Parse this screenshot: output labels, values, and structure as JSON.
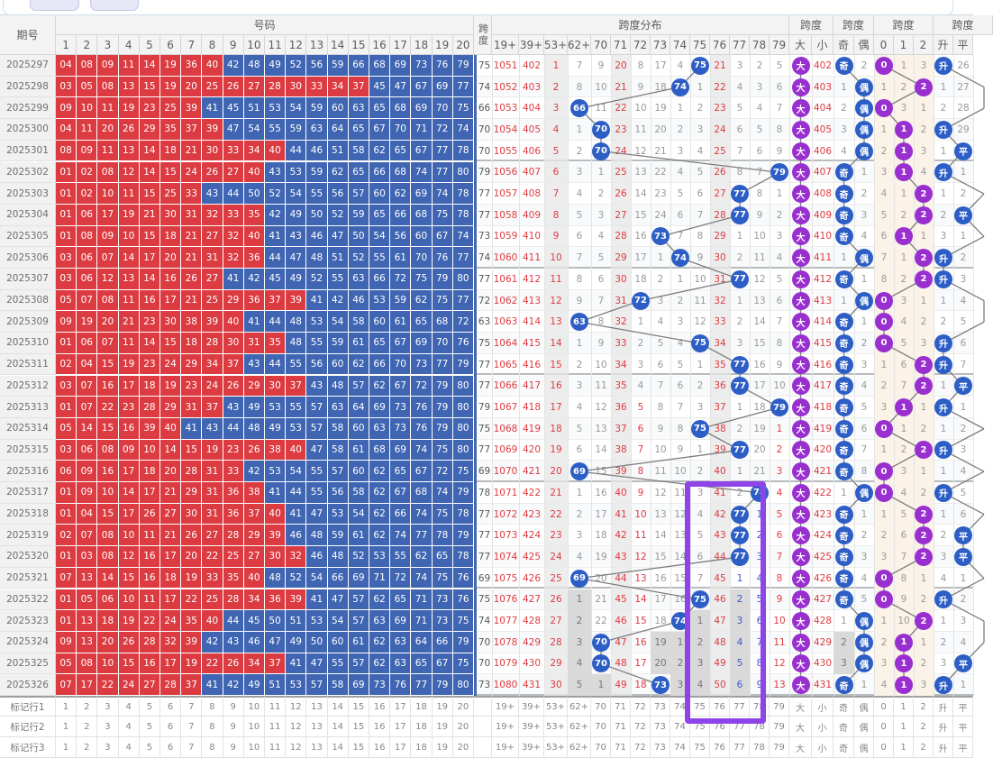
{
  "app": {
    "top_buttons": [
      {
        "label": ""
      },
      {
        "label": ""
      }
    ]
  },
  "colors": {
    "cell_red": "#dc3b41",
    "cell_blue": "#3f65b3",
    "ball_blue": "#2d5ec5",
    "ball_purple": "#9a2fd0",
    "text_red": "#e03b41",
    "text_blue": "#3f58c9",
    "text_gray": "#9a9a9a",
    "shaded_col": "#e7e7e7",
    "cream_col": "#fbf2e8",
    "gray_cell": "#d9d9d9",
    "highlight": "#8e44e8",
    "span_stripe": "#4668b0"
  },
  "headers": {
    "period": "期号",
    "numbers_group": "号码",
    "span": "跨度",
    "dist_group": "跨度分布",
    "size_group": "跨度",
    "parity_group": "跨度",
    "mod_group": "跨度",
    "trend_group": "跨度",
    "number_cols": [
      "1",
      "2",
      "3",
      "4",
      "5",
      "6",
      "7",
      "8",
      "9",
      "10",
      "11",
      "12",
      "13",
      "14",
      "15",
      "16",
      "17",
      "18",
      "19",
      "20"
    ],
    "right_cols": [
      "19+",
      "39+",
      "53+",
      "62+",
      "70",
      "71",
      "72",
      "73",
      "74",
      "75",
      "76",
      "77",
      "78",
      "79",
      "大",
      "小",
      "奇",
      "偶",
      "0",
      "1",
      "2",
      "升",
      "平"
    ],
    "shaded_cols": [
      "53+",
      "71",
      "76"
    ],
    "cream_cols": [
      "0",
      "1",
      "2"
    ]
  },
  "highlight_note": {
    "covers_columns": "75 76 77",
    "rows": "2025317 to marker row 1"
  },
  "footer": {
    "labels": [
      "标记行1",
      "标记行2",
      "标记行3"
    ]
  },
  "rows": [
    {
      "period": "2025297",
      "numbers": "04 08 09 11 14 19 36 40 42 48 49 52 56 59 66 68 69 73 76 79",
      "span": "75",
      "cells": [
        "r:1051",
        "r:402",
        "r:1",
        "7",
        "9",
        "r:20",
        "8",
        "17",
        "4",
        "B:75",
        "r:21",
        "3",
        "2",
        "5",
        "P:大",
        "r:402",
        "B:奇",
        "2",
        "P:0",
        "1",
        "3",
        "B:升",
        "26"
      ]
    },
    {
      "period": "2025298",
      "numbers": "03 05 08 13 15 19 20 25 26 27 28 30 33 34 37 45 47 67 69 77",
      "span": "74",
      "cells": [
        "r:1052",
        "r:403",
        "r:2",
        "8",
        "10",
        "r:21",
        "9",
        "18",
        "B:74",
        "1",
        "r:22",
        "4",
        "3",
        "6",
        "P:大",
        "r:403",
        "1",
        "B:偶",
        "1",
        "2",
        "P:2",
        "1",
        "27"
      ]
    },
    {
      "period": "2025299",
      "numbers": "09 10 11 19 23 25 39 41 45 51 53 54 59 60 63 65 68 69 70 75",
      "span": "66",
      "cells": [
        "r:1053",
        "r:404",
        "r:3",
        "B:66",
        "11",
        "r:22",
        "10",
        "19",
        "1",
        "2",
        "r:23",
        "5",
        "4",
        "7",
        "P:大",
        "r:404",
        "2",
        "B:偶",
        "P:0",
        "3",
        "1",
        "2",
        "28"
      ]
    },
    {
      "period": "2025300",
      "numbers": "04 11 20 26 29 35 37 39 47 54 55 59 63 64 65 67 70 71 72 74",
      "span": "70",
      "cells": [
        "r:1054",
        "r:405",
        "r:4",
        "1",
        "B:70",
        "r:23",
        "11",
        "20",
        "2",
        "3",
        "r:24",
        "6",
        "5",
        "8",
        "P:大",
        "r:405",
        "3",
        "B:偶",
        "1",
        "P:1",
        "2",
        "B:升",
        "29"
      ]
    },
    {
      "period": "2025301",
      "numbers": "08 09 11 13 14 18 21 30 33 34 40 44 46 51 58 62 65 67 77 78",
      "span": "70",
      "cells": [
        "r:1055",
        "r:406",
        "r:5",
        "2",
        "B:70",
        "r:24",
        "12",
        "21",
        "3",
        "4",
        "r:25",
        "7",
        "6",
        "9",
        "P:大",
        "r:406",
        "4",
        "B:偶",
        "2",
        "P:1",
        "3",
        "1",
        "B:平"
      ]
    },
    {
      "period": "2025302",
      "numbers": "01 02 08 12 14 15 24 26 27 40 43 53 59 62 65 66 68 74 77 80",
      "span": "79",
      "cells": [
        "r:1056",
        "r:407",
        "r:6",
        "3",
        "1",
        "r:25",
        "13",
        "22",
        "4",
        "5",
        "r:26",
        "8",
        "7",
        "B:79",
        "P:大",
        "r:407",
        "B:奇",
        "1",
        "3",
        "P:1",
        "4",
        "B:升",
        "1"
      ]
    },
    {
      "period": "2025303",
      "numbers": "01 02 10 11 15 25 33 43 44 50 52 54 55 56 57 60 62 69 74 78",
      "span": "77",
      "cells": [
        "r:1057",
        "r:408",
        "r:7",
        "4",
        "2",
        "r:26",
        "14",
        "23",
        "5",
        "6",
        "r:27",
        "B:77",
        "8",
        "1",
        "P:大",
        "r:408",
        "B:奇",
        "2",
        "4",
        "1",
        "P:2",
        "1",
        "2"
      ]
    },
    {
      "period": "2025304",
      "numbers": "01 06 17 19 21 30 31 32 33 35 42 49 50 52 59 65 66 68 75 78",
      "span": "77",
      "cells": [
        "r:1058",
        "r:409",
        "r:8",
        "5",
        "3",
        "r:27",
        "15",
        "24",
        "6",
        "7",
        "r:28",
        "B:77",
        "9",
        "2",
        "P:大",
        "r:409",
        "B:奇",
        "3",
        "5",
        "2",
        "P:2",
        "2",
        "B:平"
      ]
    },
    {
      "period": "2025305",
      "numbers": "01 08 09 10 15 18 21 27 32 40 41 43 46 47 50 54 56 60 67 74",
      "span": "73",
      "cells": [
        "r:1059",
        "r:410",
        "r:9",
        "6",
        "4",
        "r:28",
        "16",
        "B:73",
        "7",
        "8",
        "r:29",
        "1",
        "10",
        "3",
        "P:大",
        "r:410",
        "B:奇",
        "4",
        "6",
        "P:1",
        "1",
        "3",
        "1"
      ]
    },
    {
      "period": "2025306",
      "numbers": "03 06 07 14 17 20 21 31 32 36 44 47 48 51 52 55 61 70 76 77",
      "span": "74",
      "cells": [
        "r:1060",
        "r:411",
        "r:10",
        "7",
        "5",
        "r:29",
        "17",
        "1",
        "B:74",
        "9",
        "r:30",
        "2",
        "11",
        "4",
        "P:大",
        "r:411",
        "1",
        "B:偶",
        "7",
        "1",
        "P:2",
        "B:升",
        "2"
      ]
    },
    {
      "period": "2025307",
      "numbers": "03 06 12 13 14 16 26 27 41 42 45 49 52 55 63 66 72 75 79 80",
      "span": "77",
      "cells": [
        "r:1061",
        "r:412",
        "r:11",
        "8",
        "6",
        "r:30",
        "18",
        "2",
        "1",
        "10",
        "r:31",
        "B:77",
        "12",
        "5",
        "P:大",
        "r:412",
        "B:奇",
        "1",
        "8",
        "2",
        "P:2",
        "B:升",
        "3"
      ]
    },
    {
      "period": "2025308",
      "numbers": "05 07 08 11 16 17 21 25 29 36 37 39 41 42 46 53 59 62 75 77",
      "span": "72",
      "cells": [
        "r:1062",
        "r:413",
        "r:12",
        "9",
        "7",
        "r:31",
        "B:72",
        "3",
        "2",
        "11",
        "r:32",
        "1",
        "13",
        "6",
        "P:大",
        "r:413",
        "1",
        "B:偶",
        "P:0",
        "3",
        "1",
        "1",
        "4"
      ]
    },
    {
      "period": "2025309",
      "numbers": "09 19 20 21 23 30 38 39 40 41 44 48 53 54 58 60 61 65 68 72",
      "span": "63",
      "cells": [
        "r:1063",
        "r:414",
        "r:13",
        "B:63",
        "8",
        "r:32",
        "1",
        "4",
        "3",
        "12",
        "r:33",
        "2",
        "14",
        "7",
        "P:大",
        "r:414",
        "B:奇",
        "1",
        "P:0",
        "4",
        "2",
        "2",
        "5"
      ]
    },
    {
      "period": "2025310",
      "numbers": "01 06 07 11 14 15 18 28 30 31 35 48 55 59 61 65 67 69 70 76",
      "span": "75",
      "cells": [
        "r:1064",
        "r:415",
        "r:14",
        "1",
        "9",
        "r:33",
        "2",
        "5",
        "4",
        "B:75",
        "r:34",
        "3",
        "15",
        "8",
        "P:大",
        "r:415",
        "B:奇",
        "2",
        "P:0",
        "5",
        "3",
        "B:升",
        "6"
      ]
    },
    {
      "period": "2025311",
      "numbers": "02 04 15 19 23 24 29 34 37 43 44 55 56 60 62 66 70 73 77 79",
      "span": "77",
      "cells": [
        "r:1065",
        "r:416",
        "r:15",
        "2",
        "10",
        "r:34",
        "3",
        "6",
        "5",
        "1",
        "r:35",
        "B:77",
        "16",
        "9",
        "P:大",
        "r:416",
        "B:奇",
        "3",
        "1",
        "6",
        "P:2",
        "B:升",
        "7"
      ]
    },
    {
      "period": "2025312",
      "numbers": "03 07 16 17 18 19 23 24 26 29 30 37 43 48 57 62 67 72 79 80",
      "span": "77",
      "cells": [
        "r:1066",
        "r:417",
        "r:16",
        "3",
        "11",
        "r:35",
        "4",
        "7",
        "6",
        "2",
        "r:36",
        "B:77",
        "17",
        "10",
        "P:大",
        "r:417",
        "B:奇",
        "4",
        "2",
        "7",
        "P:2",
        "1",
        "B:平"
      ]
    },
    {
      "period": "2025313",
      "numbers": "01 07 22 23 28 29 31 37 43 49 53 55 57 63 64 69 73 76 79 80",
      "span": "79",
      "cells": [
        "r:1067",
        "r:418",
        "r:17",
        "4",
        "12",
        "r:36",
        "r:5",
        "8",
        "7",
        "3",
        "r:37",
        "1",
        "18",
        "B:79",
        "P:大",
        "r:418",
        "B:奇",
        "5",
        "3",
        "P:1",
        "1",
        "B:升",
        "1"
      ]
    },
    {
      "period": "2025314",
      "numbers": "05 14 15 16 39 40 41 43 44 48 49 53 57 58 60 63 73 76 79 80",
      "span": "75",
      "cells": [
        "r:1068",
        "r:419",
        "r:18",
        "5",
        "13",
        "r:37",
        "r:6",
        "9",
        "8",
        "B:75",
        "r:38",
        "2",
        "19",
        "r:1",
        "P:大",
        "r:419",
        "B:奇",
        "6",
        "P:0",
        "1",
        "2",
        "1",
        "2"
      ]
    },
    {
      "period": "2025315",
      "numbers": "03 06 08 09 10 14 15 19 23 26 38 40 47 58 61 68 69 74 75 80",
      "span": "77",
      "cells": [
        "r:1069",
        "r:420",
        "r:19",
        "6",
        "14",
        "r:38",
        "r:7",
        "10",
        "9",
        "1",
        "r:39",
        "B:77",
        "20",
        "r:2",
        "P:大",
        "r:420",
        "B:奇",
        "7",
        "1",
        "2",
        "P:2",
        "B:升",
        "3"
      ]
    },
    {
      "period": "2025316",
      "numbers": "06 09 16 17 18 20 28 31 33 42 53 54 55 57 60 62 65 67 72 75",
      "span": "69",
      "cells": [
        "r:1070",
        "r:421",
        "r:20",
        "B:69",
        "15",
        "r:39",
        "r:8",
        "11",
        "10",
        "2",
        "r:40",
        "1",
        "21",
        "r:3",
        "P:大",
        "r:421",
        "B:奇",
        "8",
        "P:0",
        "3",
        "1",
        "1",
        "4"
      ]
    },
    {
      "period": "2025317",
      "numbers": "01 09 10 14 17 21 29 31 36 38 41 44 55 56 58 62 67 68 74 79",
      "span": "78",
      "cells": [
        "r:1071",
        "r:422",
        "r:21",
        "1",
        "16",
        "r:40",
        "r:9",
        "12",
        "11",
        "3",
        "r:41",
        "2",
        "B:78",
        "r:4",
        "P:大",
        "r:422",
        "1",
        "B:偶",
        "P:0",
        "4",
        "2",
        "B:升",
        "5"
      ]
    },
    {
      "period": "2025318",
      "numbers": "01 04 15 17 26 27 30 31 36 37 40 41 47 53 54 62 66 74 75 78",
      "span": "77",
      "cells": [
        "r:1072",
        "r:423",
        "r:22",
        "2",
        "17",
        "r:41",
        "r:10",
        "13",
        "12",
        "4",
        "r:42",
        "B:77",
        "b:1",
        "r:5",
        "P:大",
        "r:423",
        "B:奇",
        "1",
        "1",
        "5",
        "P:2",
        "1",
        "6"
      ]
    },
    {
      "period": "2025319",
      "numbers": "02 07 08 10 11 21 26 27 28 29 39 46 48 59 61 62 74 77 78 79",
      "span": "77",
      "cells": [
        "r:1073",
        "r:424",
        "r:23",
        "3",
        "18",
        "r:42",
        "r:11",
        "14",
        "13",
        "5",
        "r:43",
        "B:77",
        "b:2",
        "r:6",
        "P:大",
        "r:424",
        "B:奇",
        "2",
        "2",
        "6",
        "P:2",
        "2",
        "B:平"
      ]
    },
    {
      "period": "2025320",
      "numbers": "01 03 08 12 16 17 20 22 25 27 30 32 46 48 52 53 55 62 65 78",
      "span": "77",
      "cells": [
        "r:1074",
        "r:425",
        "r:24",
        "4",
        "19",
        "r:43",
        "r:12",
        "15",
        "14",
        "6",
        "r:44",
        "B:77",
        "b:3",
        "r:7",
        "P:大",
        "r:425",
        "B:奇",
        "3",
        "3",
        "7",
        "P:2",
        "3",
        "B:平"
      ]
    },
    {
      "period": "2025321",
      "numbers": "07 13 14 15 16 18 19 33 35 40 48 52 54 66 69 71 72 74 75 76",
      "span": "69",
      "cells": [
        "r:1075",
        "r:426",
        "r:25",
        "B:69",
        "20",
        "r:44",
        "r:13",
        "16",
        "15",
        "7",
        "r:45",
        "b:1",
        "b:4",
        "r:8",
        "P:大",
        "r:426",
        "B:奇",
        "4",
        "P:0",
        "8",
        "1",
        "4",
        "1"
      ]
    },
    {
      "period": "2025322",
      "numbers": "01 05 06 10 11 17 22 25 28 34 36 39 41 47 57 62 65 71 73 76",
      "span": "75",
      "cells": [
        "r:1076",
        "r:427",
        "r:26",
        "g:1",
        "21",
        "r:45",
        "r:14",
        "17",
        "16",
        "B:75",
        "r:46",
        "gb:2",
        "b:5",
        "r:9",
        "P:大",
        "r:427",
        "B:奇",
        "5",
        "P:0",
        "9",
        "2",
        "B:升",
        "2"
      ]
    },
    {
      "period": "2025323",
      "numbers": "01 13 18 19 22 24 35 40 44 45 50 51 53 54 57 63 69 71 73 75",
      "span": "74",
      "cells": [
        "r:1077",
        "r:428",
        "r:27",
        "g:2",
        "22",
        "r:46",
        "r:15",
        "18",
        "B:74",
        "g:1",
        "r:47",
        "gb:3",
        "b:6",
        "r:10",
        "P:大",
        "r:428",
        "1",
        "B:偶",
        "1",
        "10",
        "P:2",
        "1",
        "3"
      ]
    },
    {
      "period": "2025324",
      "numbers": "09 13 20 26 28 32 39 42 43 46 47 49 50 60 61 62 63 64 66 79",
      "span": "70",
      "cells": [
        "r:1078",
        "r:429",
        "r:28",
        "g:3",
        "B:70",
        "r:47",
        "r:16",
        "g:19",
        "g:1",
        "g:2",
        "r:48",
        "gb:4",
        "b:7",
        "r:11",
        "P:大",
        "r:429",
        "g:2",
        "B:偶",
        "2",
        "P:1",
        "1",
        "2",
        "4"
      ]
    },
    {
      "period": "2025325",
      "numbers": "05 08 10 15 16 17 19 22 26 34 37 41 47 55 57 62 63 65 67 75",
      "span": "70",
      "cells": [
        "r:1079",
        "r:430",
        "r:29",
        "g:4",
        "B:70",
        "r:48",
        "r:17",
        "g:20",
        "g:2",
        "g:3",
        "r:49",
        "gb:5",
        "b:8",
        "r:12",
        "P:大",
        "r:430",
        "g:3",
        "B:偶",
        "3",
        "P:1",
        "2",
        "3",
        "B:平"
      ]
    },
    {
      "period": "2025326",
      "numbers": "07 17 22 24 27 28 37 41 42 49 51 53 57 58 69 73 76 77 79 80",
      "span": "73",
      "cells": [
        "r:1080",
        "r:431",
        "r:30",
        "g:5",
        "g:1",
        "r:49",
        "r:18",
        "B:73",
        "g:3",
        "g:4",
        "r:50",
        "gb:6",
        "b:9",
        "r:13",
        "P:大",
        "r:431",
        "B:奇",
        "1",
        "4",
        "P:1",
        "3",
        "B:升",
        "1"
      ]
    }
  ]
}
